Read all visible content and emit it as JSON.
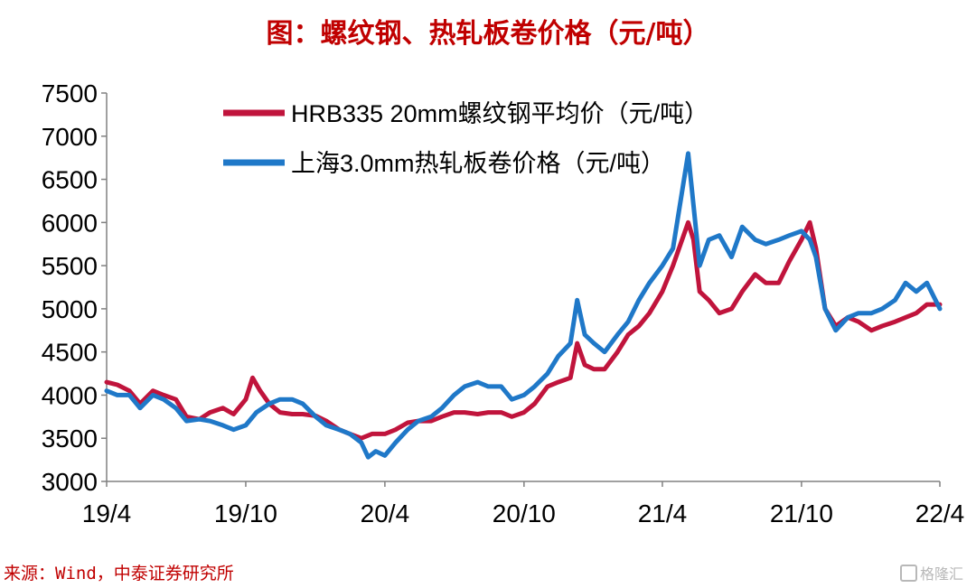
{
  "title": "图：螺纹钢、热轧板卷价格（元/吨）",
  "source": "来源：Wind，中泰证券研究所",
  "watermark": "格隆汇",
  "colors": {
    "title": "#c00000",
    "rebar": "#c0143c",
    "hrc": "#1f78c8",
    "axis": "#808080"
  },
  "chart_data": {
    "type": "line",
    "title": "",
    "xlabel": "",
    "ylabel": "",
    "ylim": [
      3000,
      7500
    ],
    "yticks": [
      3000,
      3500,
      4000,
      4500,
      5000,
      5500,
      6000,
      6500,
      7000,
      7500
    ],
    "xlim": [
      "2019-04",
      "2022-04"
    ],
    "xticks": [
      {
        "date": "2019-04",
        "label": "19/4"
      },
      {
        "date": "2019-10",
        "label": "19/10"
      },
      {
        "date": "2020-04",
        "label": "20/4"
      },
      {
        "date": "2020-10",
        "label": "20/10"
      },
      {
        "date": "2021-04",
        "label": "21/4"
      },
      {
        "date": "2021-10",
        "label": "21/10"
      },
      {
        "date": "2022-04",
        "label": "22/4"
      }
    ],
    "legend_position": "top-left",
    "grid": false,
    "series": [
      {
        "name": "HRB335 20mm螺纹钢平均价（元/吨）",
        "color": "#c0143c",
        "points": [
          [
            "2019-04-01",
            4150
          ],
          [
            "2019-04-15",
            4120
          ],
          [
            "2019-05-01",
            4050
          ],
          [
            "2019-05-15",
            3900
          ],
          [
            "2019-06-01",
            4050
          ],
          [
            "2019-06-15",
            4000
          ],
          [
            "2019-07-01",
            3950
          ],
          [
            "2019-07-15",
            3750
          ],
          [
            "2019-08-01",
            3720
          ],
          [
            "2019-08-15",
            3800
          ],
          [
            "2019-09-01",
            3850
          ],
          [
            "2019-09-15",
            3780
          ],
          [
            "2019-10-01",
            3950
          ],
          [
            "2019-10-10",
            4200
          ],
          [
            "2019-10-20",
            4050
          ],
          [
            "2019-11-01",
            3900
          ],
          [
            "2019-11-15",
            3800
          ],
          [
            "2019-12-01",
            3780
          ],
          [
            "2019-12-15",
            3780
          ],
          [
            "2020-01-01",
            3760
          ],
          [
            "2020-01-15",
            3700
          ],
          [
            "2020-02-01",
            3600
          ],
          [
            "2020-02-15",
            3550
          ],
          [
            "2020-03-01",
            3500
          ],
          [
            "2020-03-15",
            3550
          ],
          [
            "2020-04-01",
            3550
          ],
          [
            "2020-04-15",
            3600
          ],
          [
            "2020-05-01",
            3680
          ],
          [
            "2020-05-15",
            3700
          ],
          [
            "2020-06-01",
            3700
          ],
          [
            "2020-06-15",
            3750
          ],
          [
            "2020-07-01",
            3800
          ],
          [
            "2020-07-15",
            3800
          ],
          [
            "2020-08-01",
            3780
          ],
          [
            "2020-08-15",
            3800
          ],
          [
            "2020-09-01",
            3800
          ],
          [
            "2020-09-15",
            3750
          ],
          [
            "2020-10-01",
            3800
          ],
          [
            "2020-10-15",
            3900
          ],
          [
            "2020-11-01",
            4100
          ],
          [
            "2020-11-15",
            4150
          ],
          [
            "2020-12-01",
            4200
          ],
          [
            "2020-12-10",
            4600
          ],
          [
            "2020-12-20",
            4350
          ],
          [
            "2021-01-01",
            4300
          ],
          [
            "2021-01-15",
            4300
          ],
          [
            "2021-02-01",
            4500
          ],
          [
            "2021-02-15",
            4700
          ],
          [
            "2021-03-01",
            4800
          ],
          [
            "2021-03-15",
            4950
          ],
          [
            "2021-04-01",
            5200
          ],
          [
            "2021-04-15",
            5500
          ],
          [
            "2021-05-05",
            6000
          ],
          [
            "2021-05-12",
            5800
          ],
          [
            "2021-05-20",
            5200
          ],
          [
            "2021-06-01",
            5100
          ],
          [
            "2021-06-15",
            4950
          ],
          [
            "2021-07-01",
            5000
          ],
          [
            "2021-07-15",
            5200
          ],
          [
            "2021-08-01",
            5400
          ],
          [
            "2021-08-15",
            5300
          ],
          [
            "2021-09-01",
            5300
          ],
          [
            "2021-09-15",
            5550
          ],
          [
            "2021-10-01",
            5800
          ],
          [
            "2021-10-12",
            6000
          ],
          [
            "2021-10-20",
            5700
          ],
          [
            "2021-11-01",
            5000
          ],
          [
            "2021-11-15",
            4800
          ],
          [
            "2021-12-01",
            4900
          ],
          [
            "2021-12-15",
            4850
          ],
          [
            "2022-01-01",
            4750
          ],
          [
            "2022-01-15",
            4800
          ],
          [
            "2022-02-01",
            4850
          ],
          [
            "2022-02-15",
            4900
          ],
          [
            "2022-03-01",
            4950
          ],
          [
            "2022-03-15",
            5050
          ],
          [
            "2022-04-01",
            5050
          ]
        ]
      },
      {
        "name": "上海3.0mm热轧板卷价格（元/吨）",
        "color": "#1f78c8",
        "points": [
          [
            "2019-04-01",
            4050
          ],
          [
            "2019-04-15",
            4000
          ],
          [
            "2019-05-01",
            4000
          ],
          [
            "2019-05-15",
            3850
          ],
          [
            "2019-06-01",
            4000
          ],
          [
            "2019-06-15",
            3950
          ],
          [
            "2019-07-01",
            3850
          ],
          [
            "2019-07-15",
            3700
          ],
          [
            "2019-08-01",
            3720
          ],
          [
            "2019-08-15",
            3700
          ],
          [
            "2019-09-01",
            3650
          ],
          [
            "2019-09-15",
            3600
          ],
          [
            "2019-10-01",
            3650
          ],
          [
            "2019-10-15",
            3800
          ],
          [
            "2019-11-01",
            3900
          ],
          [
            "2019-11-15",
            3950
          ],
          [
            "2019-12-01",
            3950
          ],
          [
            "2019-12-15",
            3900
          ],
          [
            "2020-01-01",
            3750
          ],
          [
            "2020-01-15",
            3650
          ],
          [
            "2020-02-01",
            3600
          ],
          [
            "2020-02-15",
            3550
          ],
          [
            "2020-03-01",
            3450
          ],
          [
            "2020-03-10",
            3280
          ],
          [
            "2020-03-20",
            3350
          ],
          [
            "2020-04-01",
            3300
          ],
          [
            "2020-04-15",
            3450
          ],
          [
            "2020-05-01",
            3600
          ],
          [
            "2020-05-15",
            3700
          ],
          [
            "2020-06-01",
            3750
          ],
          [
            "2020-06-15",
            3850
          ],
          [
            "2020-07-01",
            4000
          ],
          [
            "2020-07-15",
            4100
          ],
          [
            "2020-08-01",
            4150
          ],
          [
            "2020-08-15",
            4100
          ],
          [
            "2020-09-01",
            4100
          ],
          [
            "2020-09-15",
            3950
          ],
          [
            "2020-10-01",
            4000
          ],
          [
            "2020-10-15",
            4100
          ],
          [
            "2020-11-01",
            4250
          ],
          [
            "2020-11-15",
            4450
          ],
          [
            "2020-12-01",
            4600
          ],
          [
            "2020-12-10",
            5100
          ],
          [
            "2020-12-20",
            4700
          ],
          [
            "2021-01-01",
            4600
          ],
          [
            "2021-01-15",
            4500
          ],
          [
            "2021-02-01",
            4700
          ],
          [
            "2021-02-15",
            4850
          ],
          [
            "2021-03-01",
            5100
          ],
          [
            "2021-03-15",
            5300
          ],
          [
            "2021-04-01",
            5500
          ],
          [
            "2021-04-15",
            5700
          ],
          [
            "2021-05-05",
            6800
          ],
          [
            "2021-05-12",
            6200
          ],
          [
            "2021-05-20",
            5500
          ],
          [
            "2021-06-01",
            5800
          ],
          [
            "2021-06-15",
            5850
          ],
          [
            "2021-07-01",
            5600
          ],
          [
            "2021-07-15",
            5950
          ],
          [
            "2021-08-01",
            5800
          ],
          [
            "2021-08-15",
            5750
          ],
          [
            "2021-09-01",
            5800
          ],
          [
            "2021-09-15",
            5850
          ],
          [
            "2021-10-01",
            5900
          ],
          [
            "2021-10-12",
            5800
          ],
          [
            "2021-10-20",
            5600
          ],
          [
            "2021-11-01",
            5000
          ],
          [
            "2021-11-15",
            4750
          ],
          [
            "2021-12-01",
            4900
          ],
          [
            "2021-12-15",
            4950
          ],
          [
            "2022-01-01",
            4950
          ],
          [
            "2022-01-15",
            5000
          ],
          [
            "2022-02-01",
            5100
          ],
          [
            "2022-02-15",
            5300
          ],
          [
            "2022-03-01",
            5200
          ],
          [
            "2022-03-15",
            5300
          ],
          [
            "2022-04-01",
            5000
          ]
        ]
      }
    ]
  }
}
